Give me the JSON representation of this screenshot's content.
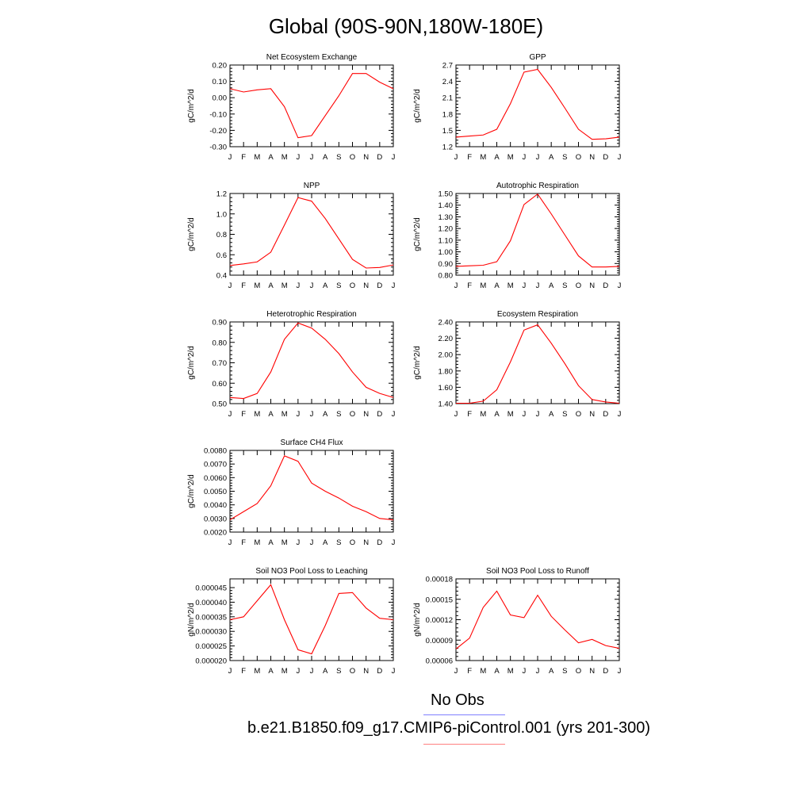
{
  "figure": {
    "title": "Global (90S-90N,180W-180E)",
    "legend": {
      "obs_label": "No Obs",
      "obs_color": "#8080ff",
      "model_label": "b.e21.B1850.f09_g17.CMIP6-piControl.001 (yrs 201-300)",
      "model_color": "#ff8080"
    },
    "line_color": "#ff0000"
  },
  "chart_data": [
    {
      "type": "line",
      "title": "Net Ecosystem Exchange",
      "ylabel": "gC/m^2/d",
      "categories": [
        "J",
        "F",
        "M",
        "A",
        "M",
        "J",
        "J",
        "A",
        "S",
        "O",
        "N",
        "D",
        "J"
      ],
      "values": [
        0.055,
        0.035,
        0.048,
        0.055,
        -0.055,
        -0.245,
        -0.232,
        -0.11,
        0.012,
        0.148,
        0.148,
        0.095,
        0.055
      ],
      "ylim": [
        -0.3,
        0.2
      ],
      "yticks": [
        0.2,
        0.1,
        0.0,
        -0.1,
        -0.2,
        -0.3
      ],
      "ytick_labels": [
        "0.20",
        "0.10",
        "0.00",
        "-0.10",
        "-0.20",
        "-0.30"
      ]
    },
    {
      "type": "line",
      "title": "GPP",
      "ylabel": "gC/m^2/d",
      "categories": [
        "J",
        "F",
        "M",
        "A",
        "M",
        "J",
        "J",
        "A",
        "S",
        "O",
        "N",
        "D",
        "J"
      ],
      "values": [
        1.375,
        1.395,
        1.415,
        1.52,
        1.99,
        2.57,
        2.62,
        2.29,
        1.91,
        1.52,
        1.335,
        1.345,
        1.375
      ],
      "ylim": [
        1.2,
        2.7
      ],
      "yticks": [
        2.7,
        2.4,
        2.1,
        1.8,
        1.5,
        1.2
      ],
      "ytick_labels": [
        "2.7",
        "2.4",
        "2.1",
        "1.8",
        "1.5",
        "1.2"
      ]
    },
    {
      "type": "line",
      "title": "NPP",
      "ylabel": "gC/m^2/d",
      "categories": [
        "J",
        "F",
        "M",
        "A",
        "M",
        "J",
        "J",
        "A",
        "S",
        "O",
        "N",
        "D",
        "J"
      ],
      "values": [
        0.495,
        0.51,
        0.53,
        0.625,
        0.89,
        1.16,
        1.125,
        0.955,
        0.755,
        0.555,
        0.47,
        0.475,
        0.5
      ],
      "ylim": [
        0.4,
        1.2
      ],
      "yticks": [
        1.2,
        1.0,
        0.8,
        0.6,
        0.4
      ],
      "ytick_labels": [
        "1.2",
        "1.0",
        "0.8",
        "0.6",
        "0.4"
      ]
    },
    {
      "type": "line",
      "title": "Autotrophic Respiration",
      "ylabel": "gC/m^2/d",
      "categories": [
        "J",
        "F",
        "M",
        "A",
        "M",
        "J",
        "J",
        "A",
        "S",
        "O",
        "N",
        "D",
        "J"
      ],
      "values": [
        0.875,
        0.88,
        0.885,
        0.915,
        1.095,
        1.405,
        1.495,
        1.325,
        1.145,
        0.965,
        0.87,
        0.87,
        0.875
      ],
      "ylim": [
        0.8,
        1.5
      ],
      "yticks": [
        1.5,
        1.4,
        1.3,
        1.2,
        1.1,
        1.0,
        0.9,
        0.8
      ],
      "ytick_labels": [
        "1.50",
        "1.40",
        "1.30",
        "1.20",
        "1.10",
        "1.00",
        "0.90",
        "0.80"
      ]
    },
    {
      "type": "line",
      "title": "Heterotrophic Respiration",
      "ylabel": "gC/m^2/d",
      "categories": [
        "J",
        "F",
        "M",
        "A",
        "M",
        "J",
        "J",
        "A",
        "S",
        "O",
        "N",
        "D",
        "J"
      ],
      "values": [
        0.53,
        0.525,
        0.55,
        0.655,
        0.815,
        0.895,
        0.87,
        0.815,
        0.745,
        0.655,
        0.58,
        0.55,
        0.53
      ],
      "ylim": [
        0.5,
        0.9
      ],
      "yticks": [
        0.9,
        0.8,
        0.7,
        0.6,
        0.5
      ],
      "ytick_labels": [
        "0.90",
        "0.80",
        "0.70",
        "0.60",
        "0.50"
      ]
    },
    {
      "type": "line",
      "title": "Ecosystem Respiration",
      "ylabel": "gC/m^2/d",
      "categories": [
        "J",
        "F",
        "M",
        "A",
        "M",
        "J",
        "J",
        "A",
        "S",
        "O",
        "N",
        "D",
        "J"
      ],
      "values": [
        1.405,
        1.405,
        1.43,
        1.57,
        1.91,
        2.3,
        2.365,
        2.14,
        1.89,
        1.62,
        1.45,
        1.42,
        1.405
      ],
      "ylim": [
        1.4,
        2.4
      ],
      "yticks": [
        2.4,
        2.2,
        2.0,
        1.8,
        1.6,
        1.4
      ],
      "ytick_labels": [
        "2.40",
        "2.20",
        "2.00",
        "1.80",
        "1.60",
        "1.40"
      ]
    },
    {
      "type": "line",
      "title": "Surface CH4 Flux",
      "ylabel": "gC/m^2/d",
      "categories": [
        "J",
        "F",
        "M",
        "A",
        "M",
        "J",
        "J",
        "A",
        "S",
        "O",
        "N",
        "D",
        "J"
      ],
      "values": [
        0.0029,
        0.0035,
        0.0041,
        0.0054,
        0.0076,
        0.0072,
        0.0056,
        0.005,
        0.0045,
        0.0039,
        0.0035,
        0.003,
        0.0029
      ],
      "ylim": [
        0.002,
        0.008
      ],
      "yticks": [
        0.008,
        0.007,
        0.006,
        0.005,
        0.004,
        0.003,
        0.002
      ],
      "ytick_labels": [
        "0.0080",
        "0.0070",
        "0.0060",
        "0.0050",
        "0.0040",
        "0.0030",
        "0.0020"
      ]
    },
    {
      "type": "line",
      "title": "Soil NO3 Pool Loss to Leaching",
      "ylabel": "gN/m^2/d",
      "categories": [
        "J",
        "F",
        "M",
        "A",
        "M",
        "J",
        "J",
        "A",
        "S",
        "O",
        "N",
        "D",
        "J"
      ],
      "values": [
        3.4e-05,
        3.5e-05,
        4.05e-05,
        4.6e-05,
        3.4e-05,
        2.37e-05,
        2.23e-05,
        3.2e-05,
        4.3e-05,
        4.33e-05,
        3.8e-05,
        3.45e-05,
        3.4e-05
      ],
      "ylim": [
        2e-05,
        4.8e-05
      ],
      "yticks": [
        4.5e-05,
        4e-05,
        3.5e-05,
        3e-05,
        2.5e-05,
        2e-05
      ],
      "ytick_labels": [
        "0.000045",
        "0.000040",
        "0.000035",
        "0.000030",
        "0.000025",
        "0.000020"
      ]
    },
    {
      "type": "line",
      "title": "Soil NO3 Pool Loss to Runoff",
      "ylabel": "gN/m^2/d",
      "categories": [
        "J",
        "F",
        "M",
        "A",
        "M",
        "J",
        "J",
        "A",
        "S",
        "O",
        "N",
        "D",
        "J"
      ],
      "values": [
        7.7e-05,
        9.3e-05,
        0.000138,
        0.000162,
        0.000127,
        0.000123,
        0.000156,
        0.000125,
        0.000105,
        8.6e-05,
        9.1e-05,
        8.2e-05,
        7.8e-05
      ],
      "ylim": [
        6e-05,
        0.00018
      ],
      "yticks": [
        0.00018,
        0.00015,
        0.00012,
        9e-05,
        6e-05
      ],
      "ytick_labels": [
        "0.00018",
        "0.00015",
        "0.00012",
        "0.00009",
        "0.00006"
      ]
    }
  ]
}
